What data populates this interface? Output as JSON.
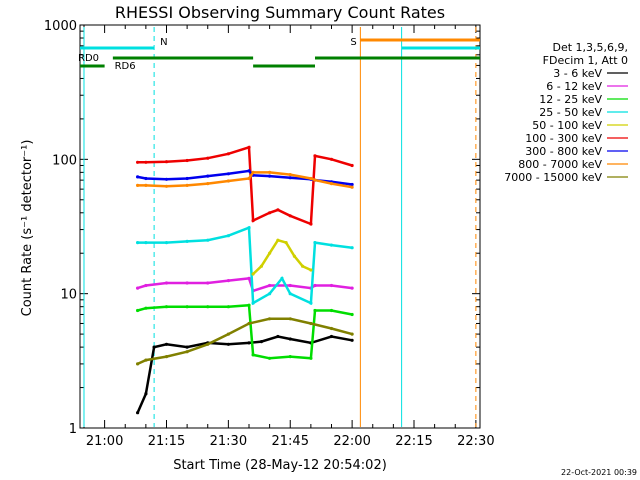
{
  "chart_data": {
    "type": "line",
    "title": "RHESSI Observing Summary Count Rates",
    "xlabel": "Start Time (28-May-12 20:54:02)",
    "ylabel": "Count Rate (s⁻¹ detector⁻¹)",
    "x_scale": "time",
    "y_scale": "log",
    "x_range": [
      "20:54:02",
      "22:31:00"
    ],
    "ylim": [
      1,
      1000
    ],
    "x_ticks": [
      "21:00",
      "21:15",
      "21:30",
      "21:45",
      "22:00",
      "22:15",
      "22:30"
    ],
    "y_ticks": [
      {
        "value": 1,
        "label": "1"
      },
      {
        "value": 10,
        "label": "10"
      },
      {
        "value": 100,
        "label": "100"
      },
      {
        "value": 1000,
        "label": "1000"
      }
    ],
    "footer_date": "22-Oct-2021 00:39",
    "legend": {
      "position": "right",
      "header": [
        "Det 1,3,5,6,9,",
        "FDecim 1, Att 0"
      ]
    },
    "series": [
      {
        "name": "3 - 6 keV",
        "color": "#000000",
        "x": [
          "21:08",
          "21:10",
          "21:12",
          "21:15",
          "21:20",
          "21:25",
          "21:30",
          "21:35",
          "21:38",
          "21:42",
          "21:45",
          "21:50",
          "21:55",
          "22:00"
        ],
        "y": [
          1.3,
          1.8,
          4.0,
          4.2,
          4.0,
          4.3,
          4.2,
          4.3,
          4.4,
          4.8,
          4.6,
          4.3,
          4.8,
          4.5
        ]
      },
      {
        "name": "6 - 12 keV",
        "color": "#e020e0",
        "x": [
          "21:08",
          "21:10",
          "21:15",
          "21:20",
          "21:25",
          "21:30",
          "21:35",
          "21:36",
          "21:40",
          "21:45",
          "21:50",
          "21:51",
          "21:55",
          "22:00"
        ],
        "y": [
          11,
          11.5,
          12,
          12,
          12,
          12.5,
          13,
          10.5,
          11.5,
          11.5,
          11,
          11.5,
          11.5,
          11
        ]
      },
      {
        "name": "12 - 25 keV",
        "color": "#00dd00",
        "x": [
          "21:08",
          "21:10",
          "21:15",
          "21:20",
          "21:25",
          "21:30",
          "21:35",
          "21:36",
          "21:40",
          "21:45",
          "21:50",
          "21:51",
          "21:55",
          "22:00"
        ],
        "y": [
          7.5,
          7.8,
          8,
          8,
          8,
          8,
          8.2,
          3.5,
          3.3,
          3.4,
          3.3,
          7.5,
          7.5,
          7.0
        ]
      },
      {
        "name": "25 - 50 keV",
        "color": "#00e0e0",
        "x": [
          "21:08",
          "21:10",
          "21:15",
          "21:20",
          "21:25",
          "21:30",
          "21:35",
          "21:36",
          "21:40",
          "21:43",
          "21:45",
          "21:50",
          "21:51",
          "21:55",
          "22:00"
        ],
        "y": [
          24,
          24,
          24,
          24.5,
          25,
          27,
          31,
          8.5,
          10,
          13,
          10,
          8.5,
          24,
          23,
          22
        ]
      },
      {
        "name": "50 - 100 keV",
        "color": "#d0d000",
        "x": [
          "21:36",
          "21:38",
          "21:40",
          "21:42",
          "21:44",
          "21:46",
          "21:48",
          "21:50"
        ],
        "y": [
          14,
          16,
          20,
          25,
          24,
          19,
          16,
          15
        ]
      },
      {
        "name": "100 - 300 keV",
        "color": "#ee0000",
        "x": [
          "21:08",
          "21:10",
          "21:15",
          "21:20",
          "21:25",
          "21:30",
          "21:35",
          "21:36",
          "21:40",
          "21:42",
          "21:45",
          "21:50",
          "21:51",
          "21:55",
          "22:00"
        ],
        "y": [
          95,
          95,
          96,
          98,
          102,
          110,
          123,
          35,
          40,
          42,
          38,
          33,
          106,
          100,
          90
        ]
      },
      {
        "name": "300 - 800 keV",
        "color": "#0000ee",
        "x": [
          "21:08",
          "21:10",
          "21:15",
          "21:20",
          "21:25",
          "21:30",
          "21:35",
          "21:36",
          "21:40",
          "21:45",
          "21:50",
          "21:51",
          "21:55",
          "22:00"
        ],
        "y": [
          74,
          72,
          71,
          72,
          75,
          78,
          82,
          76,
          75,
          73,
          71,
          70,
          68,
          65
        ]
      },
      {
        "name": "800 - 7000 keV",
        "color": "#ff8800",
        "x": [
          "21:08",
          "21:10",
          "21:15",
          "21:20",
          "21:25",
          "21:30",
          "21:35",
          "21:36",
          "21:40",
          "21:45",
          "21:50",
          "21:51",
          "21:55",
          "22:00"
        ],
        "y": [
          64,
          64,
          63,
          64,
          66,
          69,
          72,
          80,
          80,
          77,
          72,
          70,
          66,
          62
        ]
      },
      {
        "name": "7000 - 15000 keV",
        "color": "#808000",
        "x": [
          "21:08",
          "21:10",
          "21:15",
          "21:20",
          "21:25",
          "21:30",
          "21:35",
          "21:40",
          "21:45",
          "21:50",
          "21:55",
          "22:00"
        ],
        "y": [
          3.0,
          3.2,
          3.4,
          3.7,
          4.2,
          5.0,
          6.0,
          6.5,
          6.5,
          6.0,
          5.5,
          5.0
        ]
      }
    ],
    "markers": [
      {
        "label": "N",
        "color": "#00e0e0",
        "x": "21:12",
        "style": "dashed"
      },
      {
        "label": "S",
        "color": "#ff8800",
        "x": "22:02",
        "style": "solid"
      },
      {
        "label": "",
        "color": "#00e0e0",
        "x": "22:12",
        "style": "solid"
      },
      {
        "label": "",
        "color": "#00e0e0",
        "x": "20:55",
        "style": "solid"
      },
      {
        "label": "",
        "color": "#ff8800",
        "x": "22:30",
        "style": "dashed"
      }
    ],
    "flag_bars": [
      {
        "label": "",
        "color": "#00e0e0",
        "level": 1,
        "from": "20:54:02",
        "to": "21:12"
      },
      {
        "label": "",
        "color": "#00e0e0",
        "level": 1,
        "from": "22:12",
        "to": "22:31"
      },
      {
        "label": "",
        "color": "#ff8800",
        "level": 0,
        "from": "22:02",
        "to": "22:31"
      },
      {
        "label": "RD0",
        "color": "#008000",
        "level": 2,
        "from": "21:02",
        "to": "21:36"
      },
      {
        "label": "",
        "color": "#008000",
        "level": 2,
        "from": "21:51",
        "to": "22:31"
      },
      {
        "label": "RD6",
        "color": "#008000",
        "level": 3,
        "from": "20:54:02",
        "to": "21:00"
      },
      {
        "label": "",
        "color": "#008000",
        "level": 3,
        "from": "21:36",
        "to": "21:51"
      }
    ]
  }
}
